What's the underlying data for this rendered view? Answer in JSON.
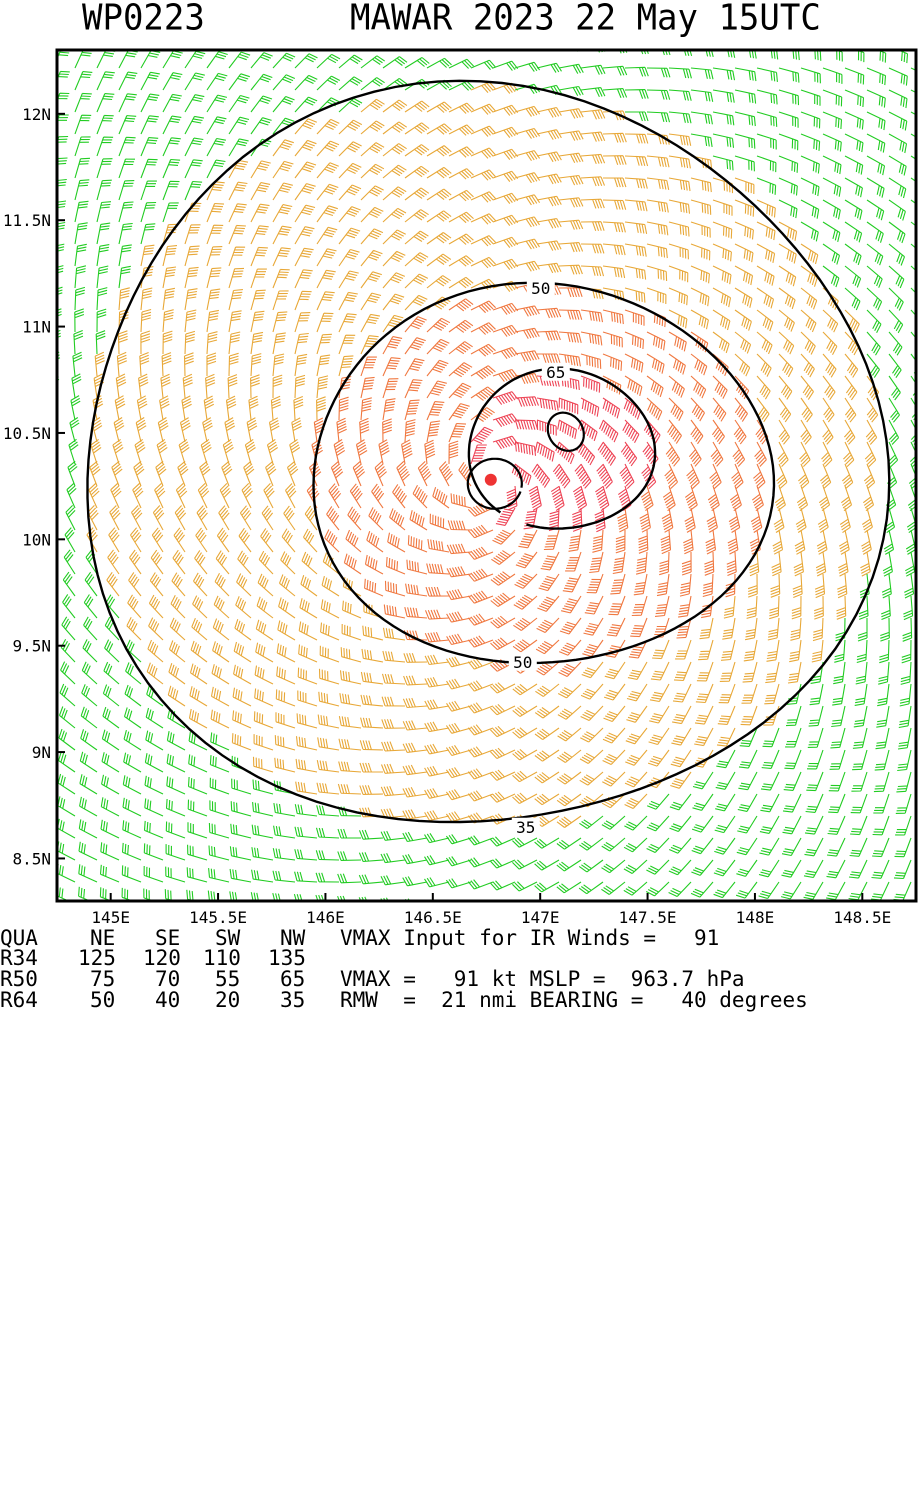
{
  "header": {
    "storm_id": "WP0223",
    "title": "MAWAR 2023 22 May 15UTC"
  },
  "chart_data": {
    "type": "wind-barb-field",
    "xlim": [
      144.75,
      148.75
    ],
    "ylim": [
      8.3,
      12.3
    ],
    "x_ticks": [
      145.0,
      145.5,
      146.0,
      146.5,
      147.0,
      147.5,
      148.0,
      148.5
    ],
    "x_tick_labels": [
      "145E",
      "145.5E",
      "146E",
      "146.5E",
      "147E",
      "147.5E",
      "148E",
      "148.5E"
    ],
    "y_ticks": [
      8.5,
      9.0,
      9.5,
      10.0,
      10.5,
      11.0,
      11.5,
      12.0
    ],
    "y_tick_labels": [
      "8.5N",
      "9N",
      "9.5N",
      "10N",
      "10.5N",
      "11N",
      "11.5N",
      "12N"
    ],
    "center": {
      "lon": 146.77,
      "lat": 10.28
    },
    "contours": [
      {
        "level": 35,
        "label": "35"
      },
      {
        "level": 50,
        "label": "50"
      },
      {
        "level": 65,
        "label": "65"
      }
    ],
    "barb_colors": {
      "lt35": "#22cc22",
      "b35_50": "#e8a838",
      "b50_65": "#f07840",
      "ge65": "#ee4455"
    },
    "contour_color": "#000000",
    "center_color": "#ee3333"
  },
  "table": {
    "header": [
      "QUA",
      "NE",
      "SE",
      "SW",
      "NW"
    ],
    "rows": [
      [
        "R34",
        "125",
        "120",
        "110",
        "135"
      ],
      [
        "R50",
        "75",
        "70",
        "55",
        "65"
      ],
      [
        "R64",
        "50",
        "40",
        "20",
        "35"
      ]
    ],
    "line1": "VMAX Input for IR Winds =   91",
    "line3": "VMAX =   91 kt MSLP =  963.7 hPa",
    "line4": "RMW  =  21 nmi BEARING =   40 degrees"
  }
}
